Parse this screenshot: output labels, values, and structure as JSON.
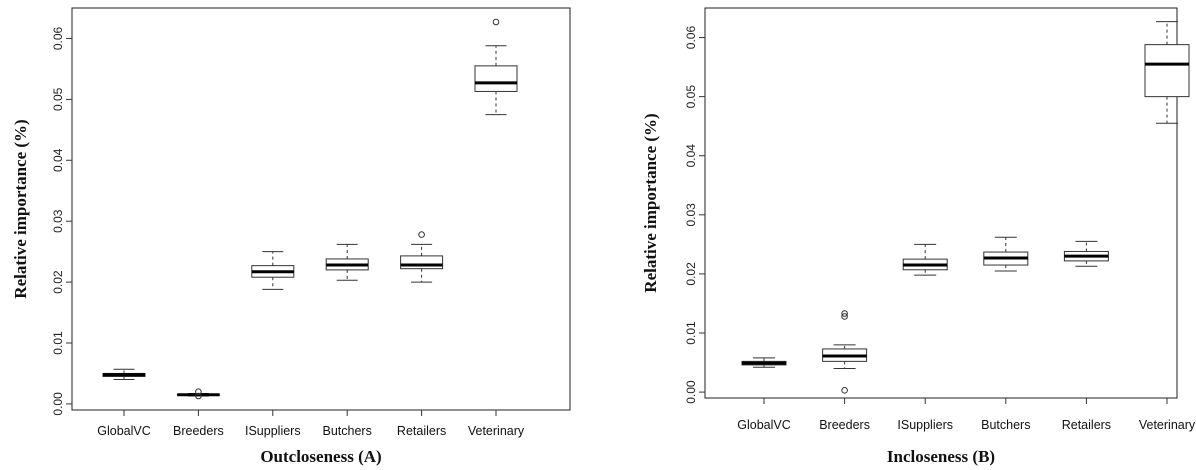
{
  "chart_data": [
    {
      "type": "boxplot",
      "xlabel": "Outcloseness (A)",
      "ylabel": "Relative importance (%)",
      "ylim": [
        -0.001,
        0.065
      ],
      "yticks": [
        "0.00",
        "0.01",
        "0.02",
        "0.03",
        "0.04",
        "0.05",
        "0.06"
      ],
      "categories": [
        "GlobalVC",
        "Breeders",
        "ISuppliers",
        "Butchers",
        "Retailers",
        "Veterinary"
      ],
      "boxes": [
        {
          "min": 0.004,
          "q1": 0.0045,
          "median": 0.0048,
          "q3": 0.005,
          "max": 0.0057,
          "outliers": []
        },
        {
          "min": 0.0013,
          "q1": 0.0014,
          "median": 0.0015,
          "q3": 0.0016,
          "max": 0.0017,
          "outliers": [
            0.002,
            0.0013
          ]
        },
        {
          "min": 0.0188,
          "q1": 0.0208,
          "median": 0.0217,
          "q3": 0.0227,
          "max": 0.025,
          "outliers": []
        },
        {
          "min": 0.0203,
          "q1": 0.022,
          "median": 0.0228,
          "q3": 0.0238,
          "max": 0.0262,
          "outliers": []
        },
        {
          "min": 0.02,
          "q1": 0.0222,
          "median": 0.0228,
          "q3": 0.0243,
          "max": 0.0262,
          "outliers": [
            0.0278
          ]
        },
        {
          "min": 0.0475,
          "q1": 0.0513,
          "median": 0.0527,
          "q3": 0.0555,
          "max": 0.0588,
          "outliers": [
            0.0627
          ]
        }
      ]
    },
    {
      "type": "boxplot",
      "xlabel": "Incloseness (B)",
      "ylabel": "Relative importance (%)",
      "ylim": [
        -0.001,
        0.065
      ],
      "yticks": [
        "0.00",
        "0.01",
        "0.02",
        "0.03",
        "0.04",
        "0.05",
        "0.06"
      ],
      "categories": [
        "GlobalVC",
        "Breeders",
        "ISuppliers",
        "Butchers",
        "Retailers",
        "Veterinary"
      ],
      "boxes": [
        {
          "min": 0.0042,
          "q1": 0.0046,
          "median": 0.0049,
          "q3": 0.0052,
          "max": 0.0058,
          "outliers": []
        },
        {
          "min": 0.004,
          "q1": 0.0052,
          "median": 0.0061,
          "q3": 0.0073,
          "max": 0.008,
          "outliers": [
            0.0133,
            0.0128,
            0.0003
          ]
        },
        {
          "min": 0.0198,
          "q1": 0.0207,
          "median": 0.0215,
          "q3": 0.0225,
          "max": 0.025,
          "outliers": []
        },
        {
          "min": 0.0205,
          "q1": 0.0215,
          "median": 0.0227,
          "q3": 0.0237,
          "max": 0.0262,
          "outliers": []
        },
        {
          "min": 0.0213,
          "q1": 0.0222,
          "median": 0.023,
          "q3": 0.0238,
          "max": 0.0255,
          "outliers": []
        },
        {
          "min": 0.0455,
          "q1": 0.05,
          "median": 0.0555,
          "q3": 0.0588,
          "max": 0.0627,
          "outliers": []
        }
      ]
    }
  ]
}
